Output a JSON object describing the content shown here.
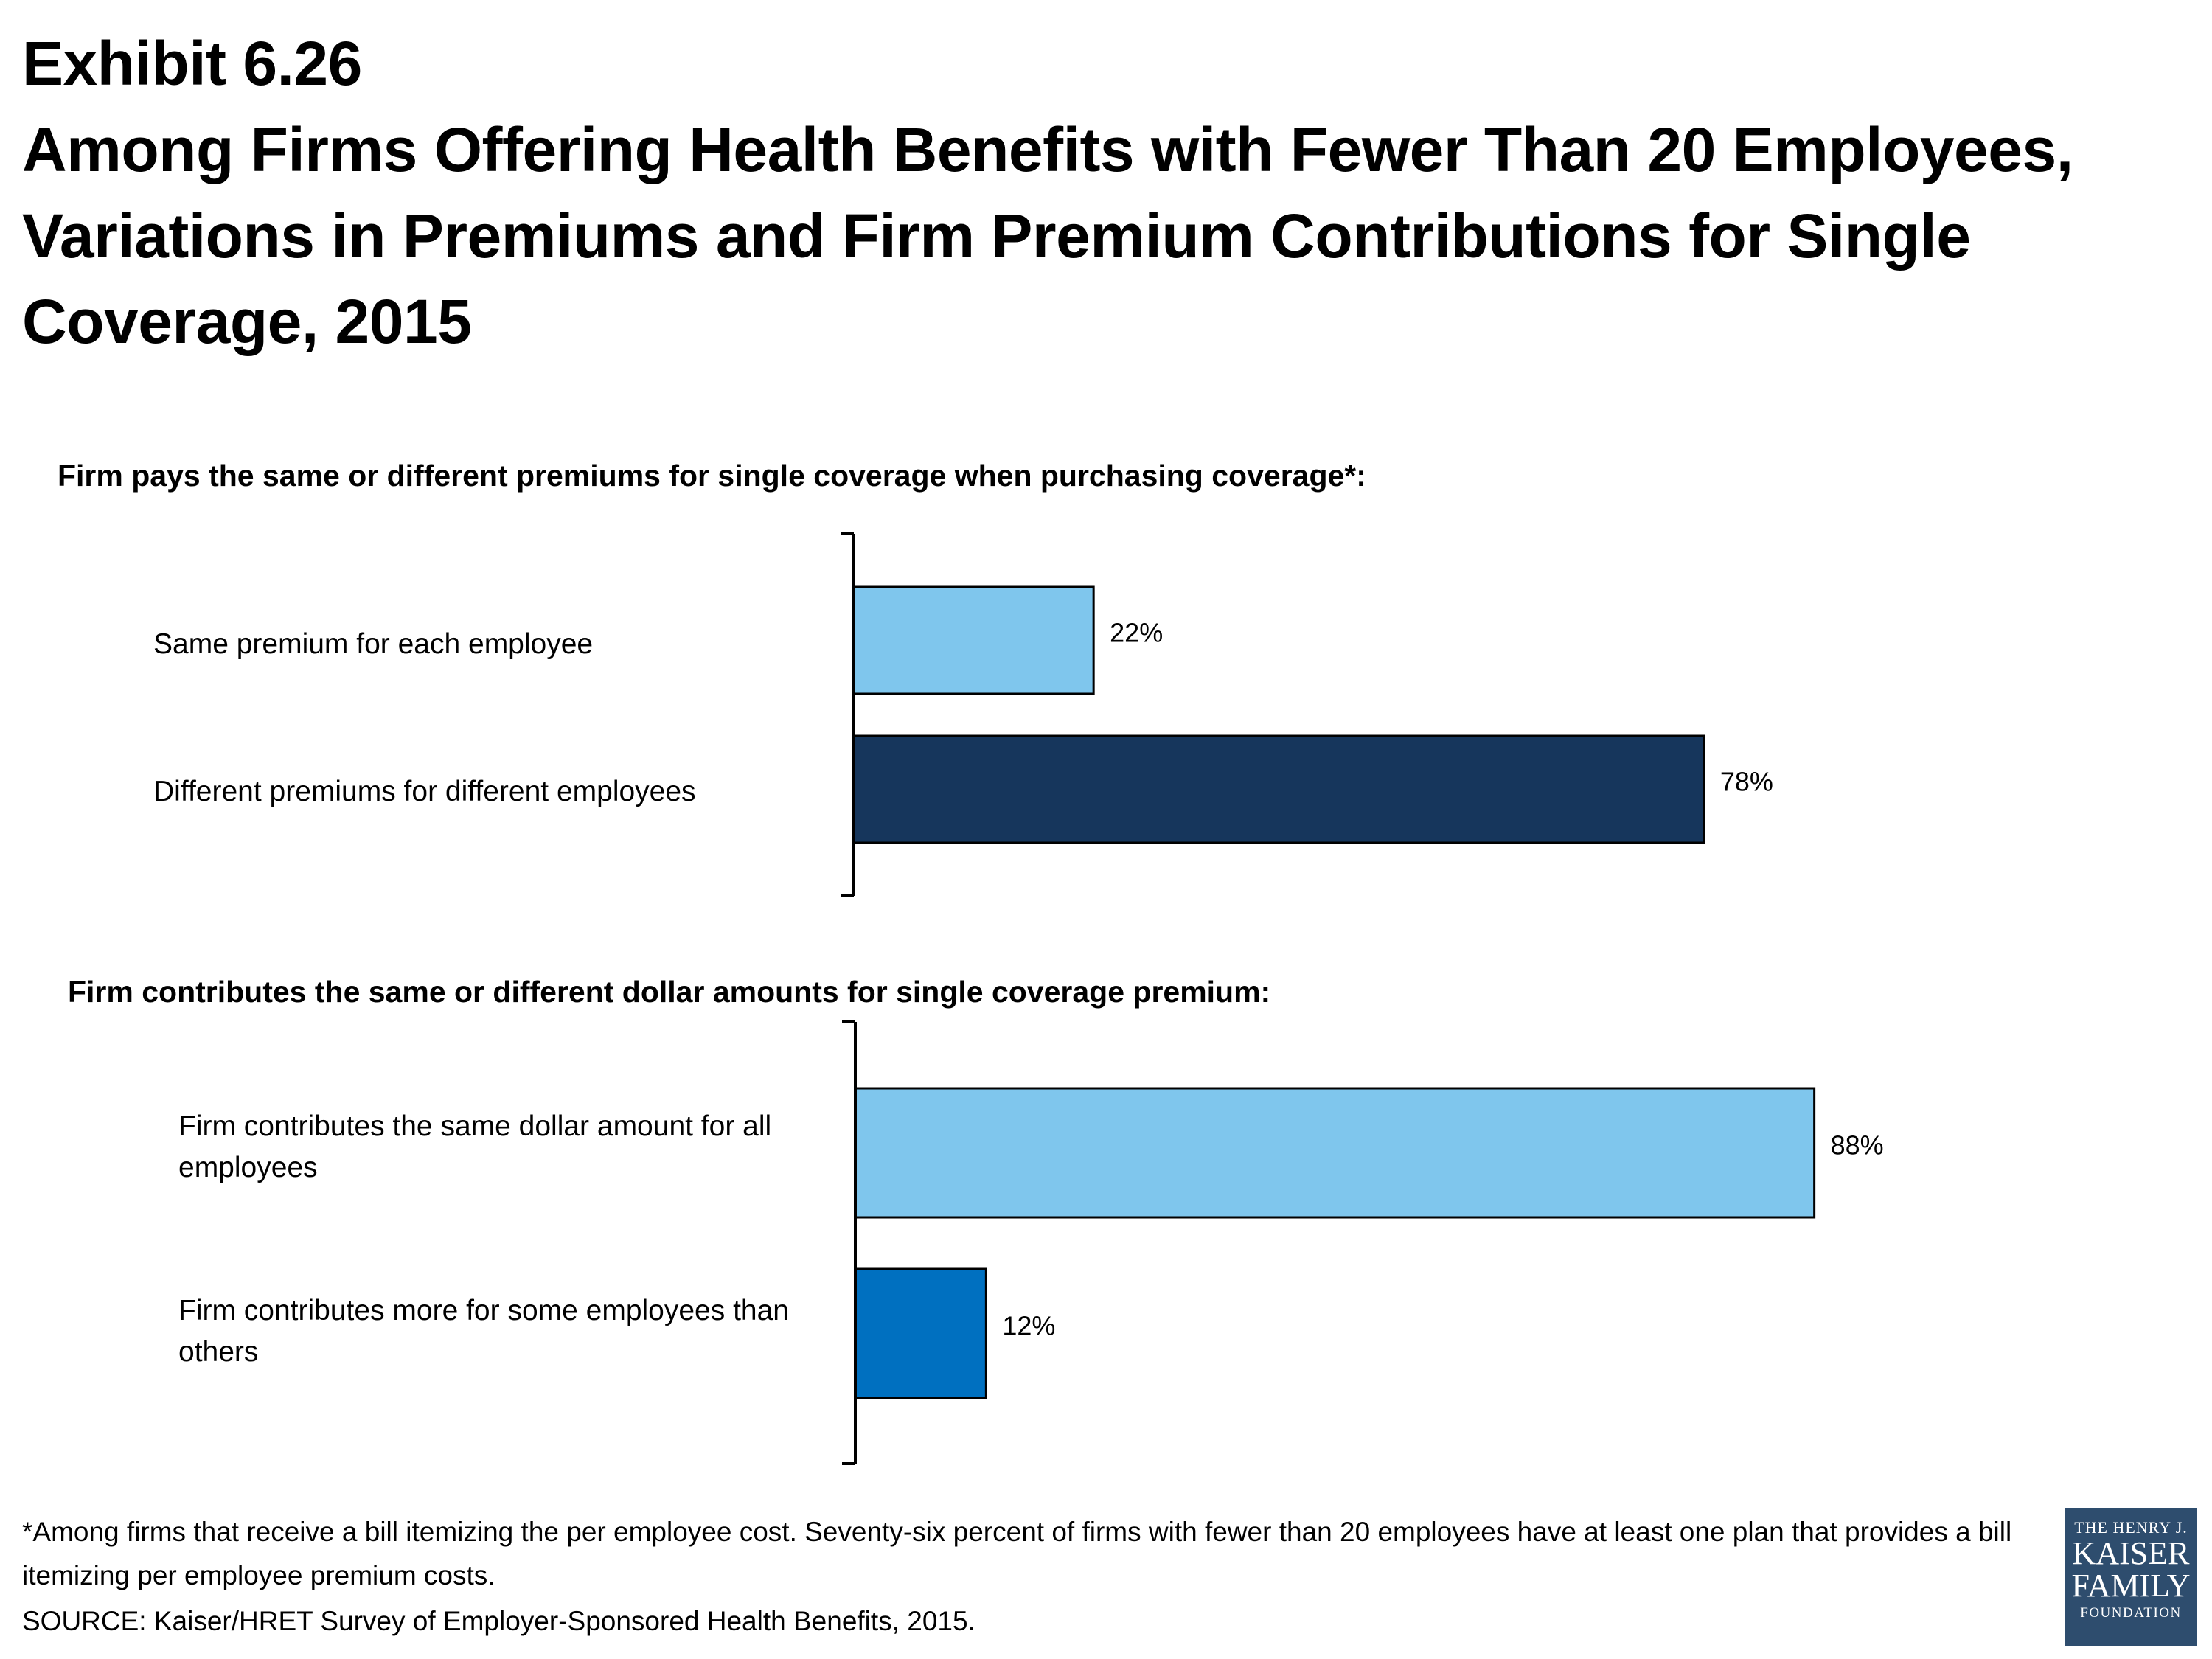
{
  "header": {
    "exhibit": "Exhibit 6.26",
    "title": "Among Firms Offering Health Benefits with Fewer Than 20 Employees, Variations in Premiums and Firm Premium Contributions for Single Coverage, 2015"
  },
  "panels": [
    {
      "heading": "Firm pays the same or different premiums for single coverage when purchasing coverage*:",
      "labels": [
        "Same premium for each employee",
        "Different premiums for different employees"
      ]
    },
    {
      "heading": "Firm contributes the same or different dollar amounts for single coverage premium:",
      "labels": [
        "Firm contributes the same dollar amount for all employees",
        "Firm contributes more for some employees than others"
      ]
    }
  ],
  "chart_data": [
    {
      "type": "bar",
      "orientation": "horizontal",
      "title": "Firm pays the same or different premiums for single coverage when purchasing coverage*:",
      "categories": [
        "Same premium for each employee",
        "Different premiums for different employees"
      ],
      "values": [
        22,
        78
      ],
      "value_labels": [
        "22%",
        "78%"
      ],
      "colors": [
        "#7fc6ed",
        "#16365c"
      ],
      "xlim": [
        0,
        100
      ],
      "grid": false
    },
    {
      "type": "bar",
      "orientation": "horizontal",
      "title": "Firm contributes the same or different dollar amounts for single coverage premium:",
      "categories": [
        "Firm contributes the same dollar amount for all employees",
        "Firm contributes more for some employees than others"
      ],
      "values": [
        88,
        12
      ],
      "value_labels": [
        "88%",
        "12%"
      ],
      "colors": [
        "#7fc6ed",
        "#0070c0"
      ],
      "xlim": [
        0,
        100
      ],
      "grid": false
    }
  ],
  "footnote": "*Among firms that receive a bill itemizing the per employee cost.  Seventy-six percent of firms with fewer than 20 employees have at least one plan that provides a bill itemizing per employee premium costs.",
  "source": "SOURCE:  Kaiser/HRET Survey of Employer-Sponsored Health Benefits, 2015.",
  "logo": {
    "line1": "THE HENRY J.",
    "line2": "KAISER",
    "line3": "FAMILY",
    "line4": "FOUNDATION"
  }
}
